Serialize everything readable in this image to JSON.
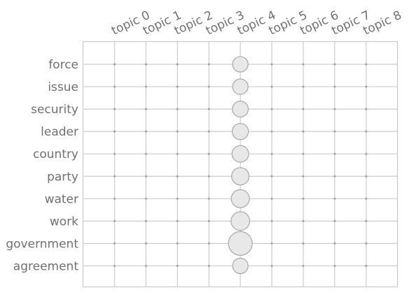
{
  "chart_data": {
    "type": "scatter",
    "title": "",
    "xlabel": "",
    "ylabel": "",
    "x_categories": [
      "topic 0",
      "topic 1",
      "topic 2",
      "topic 3",
      "topic 4",
      "topic 5",
      "topic 6",
      "topic 7",
      "topic 8"
    ],
    "y_categories": [
      "force",
      "issue",
      "security",
      "leader",
      "country",
      "party",
      "water",
      "work",
      "government",
      "agreement"
    ],
    "grid": true,
    "legend": "none",
    "colors": {
      "bubble_fill": "#e8e8e8",
      "bubble_stroke": "#a8a8a8",
      "dot": "#a0a0a0",
      "grid": "#cccccc",
      "frame": "#c8c8c8",
      "text": "#707070"
    },
    "matrix": [
      [
        0,
        0,
        0,
        0,
        0.038,
        0,
        0,
        0,
        0
      ],
      [
        0,
        0,
        0,
        0,
        0.038,
        0,
        0,
        0,
        0
      ],
      [
        0,
        0,
        0,
        0,
        0.04,
        0,
        0,
        0,
        0
      ],
      [
        0,
        0,
        0,
        0,
        0.042,
        0,
        0,
        0,
        0
      ],
      [
        0,
        0,
        0,
        0,
        0.044,
        0,
        0,
        0,
        0
      ],
      [
        0,
        0,
        0,
        0,
        0.048,
        0,
        0,
        0,
        0
      ],
      [
        0,
        0,
        0,
        0,
        0.052,
        0,
        0,
        0,
        0
      ],
      [
        0,
        0,
        0,
        0,
        0.055,
        0,
        0,
        0,
        0
      ],
      [
        0,
        0,
        0,
        0,
        0.09,
        0,
        0,
        0,
        0
      ],
      [
        0,
        0,
        0,
        0,
        0.038,
        0,
        0,
        0,
        0
      ]
    ]
  }
}
